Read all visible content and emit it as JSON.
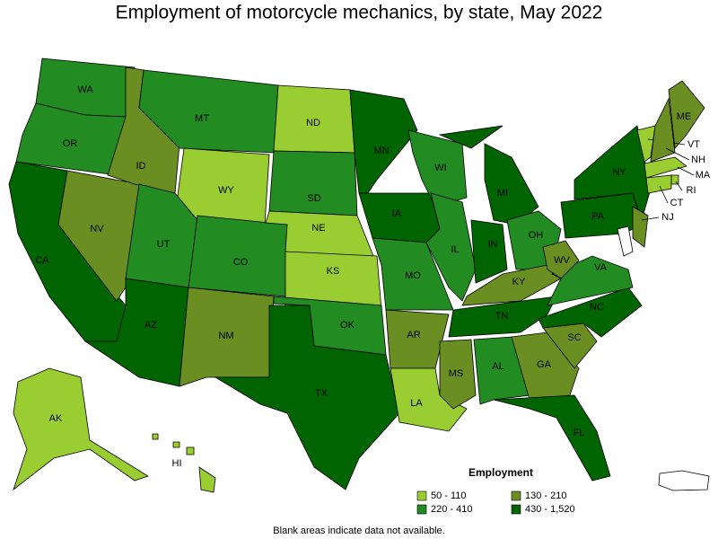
{
  "title": "Employment of motorcycle mechanics, by state, May 2022",
  "legend": {
    "title": "Employment",
    "items": [
      {
        "label": "50 - 110",
        "color": "#9acd32"
      },
      {
        "label": "130 - 210",
        "color": "#6b8e23"
      },
      {
        "label": "220 - 410",
        "color": "#228b22"
      },
      {
        "label": "430 - 1,520",
        "color": "#006400"
      }
    ]
  },
  "note": "Blank areas indicate data not available.",
  "states": [
    {
      "label": "WA",
      "color": "#228b22"
    },
    {
      "label": "OR",
      "color": "#228b22"
    },
    {
      "label": "CA",
      "color": "#006400"
    },
    {
      "label": "NV",
      "color": "#6b8e23"
    },
    {
      "label": "ID",
      "color": "#6b8e23"
    },
    {
      "label": "MT",
      "color": "#228b22"
    },
    {
      "label": "WY",
      "color": "#9acd32"
    },
    {
      "label": "UT",
      "color": "#228b22"
    },
    {
      "label": "CO",
      "color": "#228b22"
    },
    {
      "label": "AZ",
      "color": "#006400"
    },
    {
      "label": "NM",
      "color": "#6b8e23"
    },
    {
      "label": "ND",
      "color": "#9acd32"
    },
    {
      "label": "SD",
      "color": "#228b22"
    },
    {
      "label": "NE",
      "color": "#9acd32"
    },
    {
      "label": "KS",
      "color": "#9acd32"
    },
    {
      "label": "OK",
      "color": "#228b22"
    },
    {
      "label": "TX",
      "color": "#006400"
    },
    {
      "label": "MN",
      "color": "#006400"
    },
    {
      "label": "IA",
      "color": "#006400"
    },
    {
      "label": "MO",
      "color": "#228b22"
    },
    {
      "label": "AR",
      "color": "#6b8e23"
    },
    {
      "label": "LA",
      "color": "#9acd32"
    },
    {
      "label": "WI",
      "color": "#228b22"
    },
    {
      "label": "IL",
      "color": "#228b22"
    },
    {
      "label": "MI",
      "color": "#006400"
    },
    {
      "label": "IN",
      "color": "#006400"
    },
    {
      "label": "OH",
      "color": "#228b22"
    },
    {
      "label": "KY",
      "color": "#6b8e23"
    },
    {
      "label": "TN",
      "color": "#006400"
    },
    {
      "label": "MS",
      "color": "#6b8e23"
    },
    {
      "label": "AL",
      "color": "#228b22"
    },
    {
      "label": "GA",
      "color": "#6b8e23"
    },
    {
      "label": "FL",
      "color": "#006400"
    },
    {
      "label": "SC",
      "color": "#6b8e23"
    },
    {
      "label": "NC",
      "color": "#006400"
    },
    {
      "label": "VA",
      "color": "#228b22"
    },
    {
      "label": "WV",
      "color": "#6b8e23"
    },
    {
      "label": "PA",
      "color": "#006400"
    },
    {
      "label": "NY",
      "color": "#006400"
    },
    {
      "label": "ME",
      "color": "#6b8e23"
    },
    {
      "label": "VT",
      "color": "#9acd32"
    },
    {
      "label": "NH",
      "color": "#6b8e23"
    },
    {
      "label": "MA",
      "color": "#9acd32"
    },
    {
      "label": "RI",
      "color": "#9acd32"
    },
    {
      "label": "CT",
      "color": "#9acd32"
    },
    {
      "label": "NJ",
      "color": "#6b8e23"
    },
    {
      "label": "AK",
      "color": "#9acd32"
    },
    {
      "label": "HI",
      "color": "#9acd32"
    }
  ]
}
